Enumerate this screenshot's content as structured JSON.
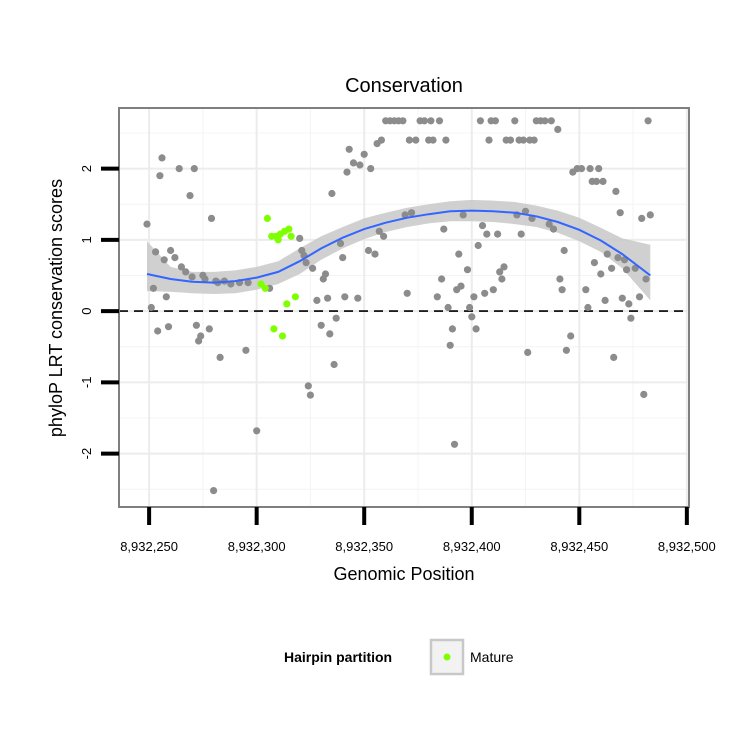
{
  "chart_data": {
    "type": "scatter",
    "title": "Conservation",
    "xlabel": "Genomic Position",
    "ylabel": "phyloP LRT conservation scores",
    "xlim": [
      8932236,
      8932501
    ],
    "ylim": [
      -2.75,
      2.85
    ],
    "x_ticks": [
      8932250,
      8932300,
      8932350,
      8932400,
      8932450,
      8932500
    ],
    "x_tick_labels": [
      "8,932,250",
      "8,932,300",
      "8,932,350",
      "8,932,400",
      "8,932,450",
      "8,932,500"
    ],
    "y_ticks": [
      -2,
      -1,
      0,
      1,
      2
    ],
    "y_tick_labels": [
      "-2",
      "-1",
      "0",
      "1",
      "2"
    ],
    "reference_line": {
      "y": 0,
      "style": "dashed"
    },
    "grid": true,
    "legend": {
      "title": "Hairpin partition",
      "entries": [
        {
          "label": "Mature",
          "color": "#80ff00"
        }
      ],
      "placement": "bottom"
    },
    "colors": {
      "hairpin": "#8c8c8c",
      "mature": "#80ff00",
      "smooth": "#3366ff",
      "band": "#c8c8c8"
    },
    "series": [
      {
        "name": "Hairpin",
        "points": [
          [
            8932249,
            1.22
          ],
          [
            8932251,
            0.05
          ],
          [
            8932252,
            0.32
          ],
          [
            8932253,
            0.83
          ],
          [
            8932254,
            -0.28
          ],
          [
            8932255,
            1.9
          ],
          [
            8932256,
            2.15
          ],
          [
            8932257,
            0.72
          ],
          [
            8932258,
            0.2
          ],
          [
            8932259,
            -0.22
          ],
          [
            8932260,
            0.85
          ],
          [
            8932262,
            0.75
          ],
          [
            8932264,
            2.0
          ],
          [
            8932265,
            0.62
          ],
          [
            8932267,
            0.55
          ],
          [
            8932269,
            1.62
          ],
          [
            8932270,
            0.48
          ],
          [
            8932271,
            2.0
          ],
          [
            8932272,
            -0.2
          ],
          [
            8932273,
            -0.42
          ],
          [
            8932274,
            -0.35
          ],
          [
            8932275,
            0.5
          ],
          [
            8932276,
            0.45
          ],
          [
            8932278,
            -0.25
          ],
          [
            8932279,
            1.3
          ],
          [
            8932280,
            -2.52
          ],
          [
            8932281,
            0.42
          ],
          [
            8932282,
            0.4
          ],
          [
            8932283,
            -0.65
          ],
          [
            8932285,
            0.42
          ],
          [
            8932288,
            0.38
          ],
          [
            8932292,
            0.4
          ],
          [
            8932295,
            -0.55
          ],
          [
            8932296,
            0.4
          ],
          [
            8932300,
            -1.68
          ],
          [
            8932306,
            0.32
          ],
          [
            8932320,
            1.02
          ],
          [
            8932321,
            0.85
          ],
          [
            8932322,
            0.78
          ],
          [
            8932323,
            0.68
          ],
          [
            8932324,
            -1.05
          ],
          [
            8932325,
            -1.18
          ],
          [
            8932326,
            0.6
          ],
          [
            8932328,
            0.15
          ],
          [
            8932330,
            -0.2
          ],
          [
            8932331,
            0.45
          ],
          [
            8932332,
            0.52
          ],
          [
            8932333,
            0.18
          ],
          [
            8932334,
            -0.32
          ],
          [
            8932335,
            1.65
          ],
          [
            8932336,
            -0.75
          ],
          [
            8932337,
            -0.1
          ],
          [
            8932339,
            0.95
          ],
          [
            8932340,
            0.75
          ],
          [
            8932341,
            0.2
          ],
          [
            8932342,
            1.95
          ],
          [
            8932343,
            2.27
          ],
          [
            8932345,
            2.08
          ],
          [
            8932347,
            0.18
          ],
          [
            8932348,
            2.05
          ],
          [
            8932350,
            2.2
          ],
          [
            8932352,
            0.85
          ],
          [
            8932353,
            2.0
          ],
          [
            8932355,
            0.8
          ],
          [
            8932356,
            2.35
          ],
          [
            8932357,
            1.12
          ],
          [
            8932358,
            2.4
          ],
          [
            8932359,
            1.05
          ],
          [
            8932360,
            2.67
          ],
          [
            8932362,
            2.67
          ],
          [
            8932364,
            2.67
          ],
          [
            8932366,
            2.67
          ],
          [
            8932368,
            2.67
          ],
          [
            8932369,
            1.35
          ],
          [
            8932370,
            0.25
          ],
          [
            8932371,
            2.4
          ],
          [
            8932372,
            1.38
          ],
          [
            8932374,
            2.4
          ],
          [
            8932376,
            2.67
          ],
          [
            8932378,
            2.67
          ],
          [
            8932380,
            2.4
          ],
          [
            8932381,
            2.67
          ],
          [
            8932382,
            2.4
          ],
          [
            8932384,
            0.2
          ],
          [
            8932385,
            2.67
          ],
          [
            8932386,
            0.45
          ],
          [
            8932387,
            1.15
          ],
          [
            8932388,
            2.4
          ],
          [
            8932389,
            0.05
          ],
          [
            8932390,
            -0.48
          ],
          [
            8932391,
            -0.25
          ],
          [
            8932392,
            -1.87
          ],
          [
            8932393,
            0.3
          ],
          [
            8932394,
            0.8
          ],
          [
            8932395,
            0.35
          ],
          [
            8932396,
            1.35
          ],
          [
            8932398,
            0.58
          ],
          [
            8932399,
            0.05
          ],
          [
            8932400,
            -0.08
          ],
          [
            8932401,
            0.2
          ],
          [
            8932402,
            -0.25
          ],
          [
            8932403,
            0.92
          ],
          [
            8932404,
            2.67
          ],
          [
            8932405,
            1.2
          ],
          [
            8932406,
            0.25
          ],
          [
            8932407,
            1.08
          ],
          [
            8932408,
            2.4
          ],
          [
            8932409,
            2.67
          ],
          [
            8932410,
            0.3
          ],
          [
            8932411,
            2.67
          ],
          [
            8932412,
            1.08
          ],
          [
            8932413,
            0.55
          ],
          [
            8932414,
            0.45
          ],
          [
            8932415,
            0.62
          ],
          [
            8932416,
            2.4
          ],
          [
            8932418,
            2.4
          ],
          [
            8932420,
            2.67
          ],
          [
            8932421,
            1.35
          ],
          [
            8932422,
            2.4
          ],
          [
            8932423,
            1.08
          ],
          [
            8932424,
            2.4
          ],
          [
            8932425,
            1.4
          ],
          [
            8932426,
            -0.58
          ],
          [
            8932427,
            2.4
          ],
          [
            8932428,
            1.3
          ],
          [
            8932429,
            2.4
          ],
          [
            8932430,
            2.67
          ],
          [
            8932432,
            2.67
          ],
          [
            8932434,
            2.67
          ],
          [
            8932436,
            1.22
          ],
          [
            8932437,
            2.67
          ],
          [
            8932438,
            1.15
          ],
          [
            8932440,
            2.55
          ],
          [
            8932441,
            0.45
          ],
          [
            8932442,
            0.3
          ],
          [
            8932443,
            0.85
          ],
          [
            8932444,
            -0.55
          ],
          [
            8932446,
            -0.35
          ],
          [
            8932447,
            1.95
          ],
          [
            8932449,
            2.0
          ],
          [
            8932451,
            2.0
          ],
          [
            8932453,
            0.3
          ],
          [
            8932454,
            0.05
          ],
          [
            8932455,
            2.0
          ],
          [
            8932456,
            1.82
          ],
          [
            8932457,
            0.68
          ],
          [
            8932458,
            1.82
          ],
          [
            8932459,
            2.0
          ],
          [
            8932460,
            0.52
          ],
          [
            8932461,
            1.82
          ],
          [
            8932462,
            0.15
          ],
          [
            8932463,
            0.8
          ],
          [
            8932465,
            0.6
          ],
          [
            8932466,
            -0.65
          ],
          [
            8932467,
            1.68
          ],
          [
            8932468,
            0.75
          ],
          [
            8932469,
            1.38
          ],
          [
            8932470,
            0.18
          ],
          [
            8932471,
            0.72
          ],
          [
            8932472,
            0.58
          ],
          [
            8932473,
            0.1
          ],
          [
            8932474,
            -0.1
          ],
          [
            8932476,
            0.6
          ],
          [
            8932478,
            0.2
          ],
          [
            8932479,
            1.3
          ],
          [
            8932480,
            -1.17
          ],
          [
            8932481,
            0.45
          ],
          [
            8932482,
            2.67
          ],
          [
            8932483,
            1.35
          ]
        ]
      },
      {
        "name": "Mature",
        "points": [
          [
            8932305,
            1.3
          ],
          [
            8932307,
            1.05
          ],
          [
            8932308,
            -0.25
          ],
          [
            8932309,
            1.05
          ],
          [
            8932310,
            1.0
          ],
          [
            8932311,
            1.08
          ],
          [
            8932312,
            -0.35
          ],
          [
            8932313,
            1.12
          ],
          [
            8932314,
            0.1
          ],
          [
            8932315,
            1.15
          ],
          [
            8932316,
            1.05
          ],
          [
            8932318,
            0.2
          ],
          [
            8932302,
            0.38
          ],
          [
            8932304,
            0.32
          ]
        ]
      }
    ],
    "smooth_curve": {
      "method": "loess",
      "x": [
        8932249,
        8932260,
        8932270,
        8932280,
        8932290,
        8932300,
        8932310,
        8932320,
        8932330,
        8932340,
        8932350,
        8932360,
        8932370,
        8932380,
        8932390,
        8932400,
        8932410,
        8932420,
        8932430,
        8932440,
        8932450,
        8932460,
        8932470,
        8932483
      ],
      "y": [
        0.52,
        0.45,
        0.41,
        0.4,
        0.42,
        0.47,
        0.55,
        0.7,
        0.88,
        1.03,
        1.15,
        1.24,
        1.31,
        1.36,
        1.4,
        1.41,
        1.4,
        1.38,
        1.33,
        1.25,
        1.14,
        0.99,
        0.8,
        0.5
      ],
      "lower": [
        0.28,
        0.27,
        0.25,
        0.24,
        0.25,
        0.3,
        0.38,
        0.52,
        0.72,
        0.88,
        1.01,
        1.11,
        1.18,
        1.23,
        1.26,
        1.26,
        1.25,
        1.22,
        1.18,
        1.1,
        0.98,
        0.83,
        0.6,
        0.15
      ],
      "upper": [
        0.98,
        0.62,
        0.55,
        0.55,
        0.57,
        0.62,
        0.7,
        0.88,
        1.05,
        1.18,
        1.3,
        1.38,
        1.45,
        1.5,
        1.54,
        1.56,
        1.55,
        1.53,
        1.48,
        1.41,
        1.31,
        1.17,
        1.02,
        0.93
      ]
    }
  }
}
